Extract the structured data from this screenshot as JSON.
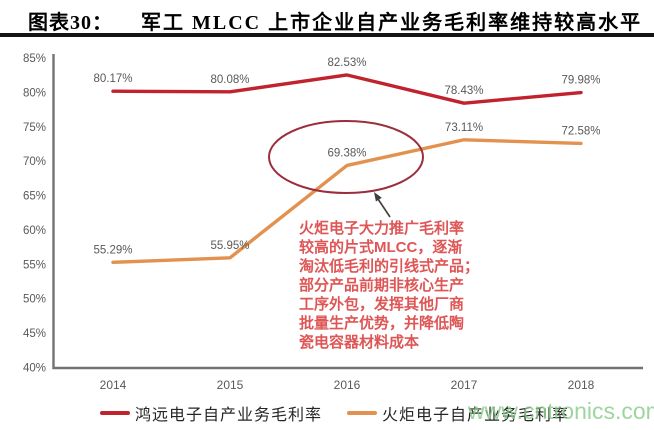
{
  "header": {
    "figure_label": "图表30：",
    "title": "军工 MLCC 上市企业自产业务毛利率维持较高水平"
  },
  "chart_data": {
    "type": "line",
    "title": "军工 MLCC 上市企业自产业务毛利率维持较高水平",
    "x": [
      "2014",
      "2015",
      "2016",
      "2017",
      "2018"
    ],
    "series": [
      {
        "name": "鸿远电子自产业务毛利率",
        "color": "#c0232e",
        "values": [
          80.17,
          80.08,
          82.53,
          78.43,
          79.98
        ]
      },
      {
        "name": "火炬电子自产业务毛利率",
        "color": "#e3914e",
        "values": [
          55.29,
          55.95,
          69.38,
          73.11,
          72.58
        ]
      }
    ],
    "xlabel": "",
    "ylabel": "",
    "ylim": [
      40,
      85
    ],
    "y_tick_step": 5,
    "y_tick_format": "percent",
    "grid": false,
    "data_labels": true,
    "legend_position": "bottom",
    "annotation": {
      "text": "火炬电子大力推广毛利率\n较高的片式MLCC，逐渐\n淘汰低毛利的引线式产品；\n部分产品前期非核心生产\n工序外包，发挥其他厂商\n批量生产优势，并降低陶\n瓷电容器材料成本",
      "target": "火炬电子 2016 69.38%",
      "color": "#de5656"
    }
  },
  "watermark": "www.cntronics.com",
  "colors": {
    "axis": "#737373",
    "tick_label": "#595959",
    "data_label": "#595959",
    "header_rule": "#141414",
    "highlight_ellipse": "#9b2d3c",
    "arrow": "#3f3f3f",
    "watermark": "#86cb86"
  }
}
